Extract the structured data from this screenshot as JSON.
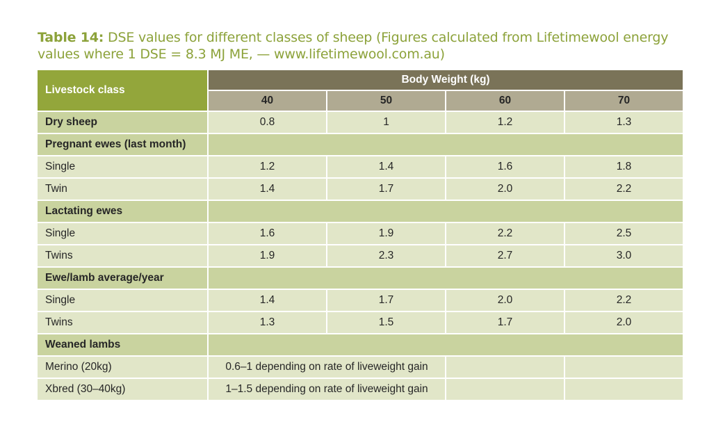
{
  "caption": {
    "label": "Table 14:",
    "text": " DSE values for different classes of sheep (Figures calculated from Lifetimewool energy values where 1 DSE = 8.3 MJ ME, — www.lifetimewool.com.au)"
  },
  "table": {
    "class_header": "Livestock class",
    "group_header": "Body Weight (kg)",
    "weights": [
      "40",
      "50",
      "60",
      "70"
    ],
    "rows": {
      "dry_sheep": {
        "label": "Dry sheep",
        "values": [
          "0.8",
          "1",
          "1.2",
          "1.3"
        ]
      },
      "pregnant_header": {
        "label": "Pregnant ewes (last month)"
      },
      "preg_single": {
        "label": "Single",
        "values": [
          "1.2",
          "1.4",
          "1.6",
          "1.8"
        ]
      },
      "preg_twin": {
        "label": "Twin",
        "values": [
          "1.4",
          "1.7",
          "2.0",
          "2.2"
        ]
      },
      "lactating_header": {
        "label": "Lactating ewes"
      },
      "lact_single": {
        "label": "Single",
        "values": [
          "1.6",
          "1.9",
          "2.2",
          "2.5"
        ]
      },
      "lact_twins": {
        "label": "Twins",
        "values": [
          "1.9",
          "2.3",
          "2.7",
          "3.0"
        ]
      },
      "ewelamb_header": {
        "label": "Ewe/lamb average/year"
      },
      "ewelamb_single": {
        "label": "Single",
        "values": [
          "1.4",
          "1.7",
          "2.0",
          "2.2"
        ]
      },
      "ewelamb_twins": {
        "label": "Twins",
        "values": [
          "1.3",
          "1.5",
          "1.7",
          "2.0"
        ]
      },
      "weaned_header": {
        "label": "Weaned lambs"
      },
      "merino": {
        "label": "Merino (20kg)",
        "note": "0.6–1 depending on rate of liveweight gain"
      },
      "xbred": {
        "label": "Xbred (30–40kg)",
        "note": "1–1.5 depending on rate of liveweight gain"
      }
    }
  }
}
